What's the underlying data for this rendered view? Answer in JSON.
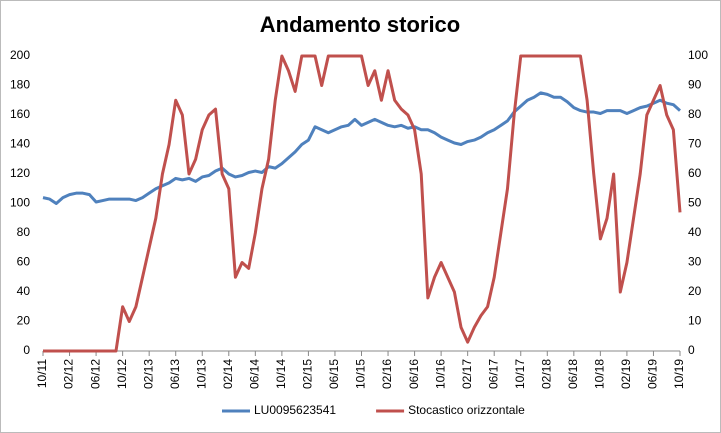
{
  "chart_data": {
    "type": "line",
    "title": "Andamento storico",
    "categories": [
      "10/11",
      null,
      null,
      null,
      "02/12",
      null,
      null,
      null,
      "06/12",
      null,
      null,
      null,
      "10/12",
      null,
      null,
      null,
      "02/13",
      null,
      null,
      null,
      "06/13",
      null,
      null,
      null,
      "10/13",
      null,
      null,
      null,
      "02/14",
      null,
      null,
      null,
      "06/14",
      null,
      null,
      null,
      "10/14",
      null,
      null,
      null,
      "02/15",
      null,
      null,
      null,
      "06/15",
      null,
      null,
      null,
      "10/15",
      null,
      null,
      null,
      "02/16",
      null,
      null,
      null,
      "06/16",
      null,
      null,
      null,
      "10/16",
      null,
      null,
      null,
      "02/17",
      null,
      null,
      null,
      "06/17",
      null,
      null,
      null,
      "10/17",
      null,
      null,
      null,
      "02/18",
      null,
      null,
      null,
      "06/18",
      null,
      null,
      null,
      "10/18",
      null,
      null,
      null,
      "02/19",
      null,
      null,
      null,
      "06/19",
      null,
      null,
      null,
      "10/19"
    ],
    "series": [
      {
        "name": "LU0095623541",
        "color": "#4f81bd",
        "values": [
          104,
          103,
          100,
          104,
          106,
          107,
          107,
          106,
          101,
          102,
          103,
          103,
          103,
          103,
          102,
          104,
          107,
          110,
          112,
          114,
          117,
          116,
          117,
          115,
          118,
          119,
          122,
          124,
          120,
          118,
          119,
          121,
          122,
          121,
          125,
          124,
          127,
          131,
          135,
          140,
          143,
          152,
          150,
          148,
          150,
          152,
          153,
          157,
          153,
          155,
          157,
          155,
          153,
          152,
          153,
          151,
          152,
          150,
          150,
          148,
          145,
          143,
          141,
          140,
          142,
          143,
          145,
          148,
          150,
          153,
          156,
          162,
          166,
          170,
          172,
          175,
          174,
          172,
          172,
          169,
          165,
          163,
          162,
          162,
          161,
          163,
          163,
          163,
          161,
          163,
          165,
          166,
          168,
          170,
          168,
          167,
          163
        ]
      },
      {
        "name": "Stocastico orizzontale",
        "color": "#c0504d",
        "axis": "y2",
        "values": [
          0,
          0,
          0,
          0,
          0,
          0,
          0,
          0,
          0,
          0,
          0,
          0,
          15,
          10,
          15,
          25,
          35,
          45,
          60,
          70,
          85,
          80,
          60,
          65,
          75,
          80,
          82,
          60,
          55,
          25,
          30,
          28,
          40,
          55,
          65,
          85,
          100,
          95,
          88,
          100,
          100,
          100,
          90,
          100,
          100,
          100,
          100,
          100,
          100,
          90,
          95,
          85,
          95,
          85,
          82,
          80,
          75,
          60,
          18,
          25,
          30,
          25,
          20,
          8,
          3,
          8,
          12,
          15,
          25,
          40,
          55,
          80,
          100,
          100,
          100,
          100,
          100,
          100,
          100,
          100,
          100,
          100,
          85,
          60,
          38,
          45,
          60,
          20,
          30,
          45,
          60,
          80,
          85,
          90,
          80,
          75,
          47
        ]
      }
    ],
    "ylim": [
      0,
      200
    ],
    "yticks": [
      0,
      20,
      40,
      60,
      80,
      100,
      120,
      140,
      160,
      180,
      200
    ],
    "y2lim": [
      0,
      100
    ],
    "y2ticks": [
      0,
      10,
      20,
      30,
      40,
      50,
      60,
      70,
      80,
      90,
      100
    ],
    "legend": "bottom"
  }
}
